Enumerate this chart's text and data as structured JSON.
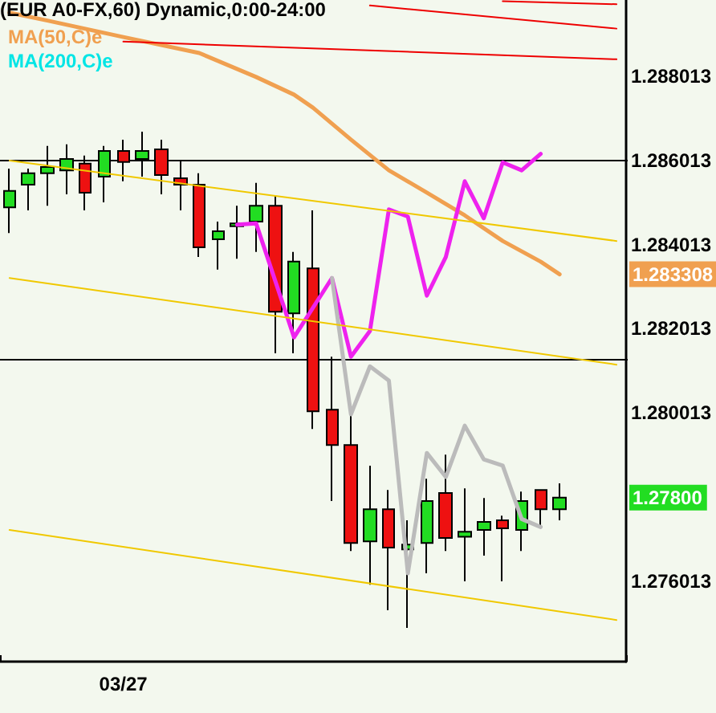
{
  "chart_data": {
    "type": "candlestick",
    "title": "(EUR A0-FX,60) Dynamic,0:00-24:00",
    "categories": [
      null,
      null,
      null,
      null,
      null,
      null,
      "03/27",
      null,
      null,
      null,
      null,
      null,
      null,
      null,
      null,
      null,
      null,
      null,
      null,
      null,
      null,
      null,
      null,
      null,
      null,
      null,
      null,
      null,
      null,
      null,
      null,
      null,
      null
    ],
    "ylim": [
      1.2741,
      1.28983
    ],
    "yticks": [
      1.288013,
      1.286013,
      1.284013,
      1.282013,
      1.280013,
      1.276013
    ],
    "legend": "top left",
    "marker": "none",
    "annotations": [
      "1.283308"
    ],
    "ref_lines": [
      {
        "axis": "y",
        "value": 1.286013,
        "color": "#000000"
      },
      {
        "axis": "y",
        "value": 1.28128,
        "color": "#000000"
      }
    ],
    "series": [
      {
        "type": "candlestick",
        "ohlc": [
          [
            1.2849,
            1.28582,
            1.28429,
            1.28529
          ],
          [
            1.28544,
            1.28582,
            1.28483,
            1.28571
          ],
          [
            1.28571,
            1.28636,
            1.28494,
            1.28586
          ],
          [
            1.28578,
            1.2864,
            1.28521,
            1.28605
          ],
          [
            1.28594,
            1.28613,
            1.28483,
            1.28525
          ],
          [
            1.28563,
            1.28636,
            1.28502,
            1.28624
          ],
          [
            1.28624,
            1.28651,
            1.28552,
            1.28598
          ],
          [
            1.28605,
            1.2867,
            1.28563,
            1.28624
          ],
          [
            1.28628,
            1.28651,
            1.28521,
            1.28567
          ],
          [
            1.28559,
            1.28601,
            1.28483,
            1.28544
          ],
          [
            1.28544,
            1.28571,
            1.28372,
            1.28395
          ],
          [
            1.28414,
            1.28456,
            1.28342,
            1.28433
          ],
          [
            1.28445,
            1.28494,
            1.28368,
            1.28452
          ],
          [
            1.28456,
            1.28548,
            1.28384,
            1.28494
          ],
          [
            1.28494,
            1.28517,
            1.28143,
            1.28242
          ],
          [
            1.28238,
            1.28384,
            1.28143,
            1.28361
          ],
          [
            1.28345,
            1.28483,
            1.27963,
            1.28005
          ],
          [
            1.28009,
            1.28135,
            1.27792,
            1.27925
          ],
          [
            1.27925,
            1.28002,
            1.27673,
            1.27692
          ],
          [
            1.27696,
            1.27876,
            1.27593,
            1.27772
          ],
          [
            1.27772,
            1.27818,
            1.27532,
            1.27681
          ],
          [
            1.27677,
            1.27746,
            1.2749,
            1.27688
          ],
          [
            1.27692,
            1.27845,
            1.2762,
            1.27792
          ],
          [
            1.27811,
            1.27902,
            1.27673,
            1.27704
          ],
          [
            1.27707,
            1.27822,
            1.27601,
            1.27719
          ],
          [
            1.27723,
            1.27799,
            1.27662,
            1.27742
          ],
          [
            1.27746,
            1.27757,
            1.27601,
            1.27727
          ],
          [
            1.27723,
            1.27814,
            1.27673,
            1.27792
          ],
          [
            1.27818,
            1.27818,
            1.2773,
            1.27772
          ],
          [
            1.27772,
            1.27834,
            1.27746,
            1.278
          ],
          null,
          null,
          null
        ],
        "colors": [
          "#22dd22",
          "#22dd22",
          "#22dd22",
          "#22dd22",
          "#ee1111",
          "#22dd22",
          "#ee1111",
          "#22dd22",
          "#ee1111",
          "#ee1111",
          "#ee1111",
          "#22dd22",
          "#22dd22",
          "#22dd22",
          "#ee1111",
          "#22dd22",
          "#ee1111",
          "#ee1111",
          "#ee1111",
          "#22dd22",
          "#ee1111",
          "#22dd22",
          "#22dd22",
          "#ee1111",
          "#22dd22",
          "#22dd22",
          "#ee1111",
          "#22dd22",
          "#ee1111",
          "#22dd22",
          null,
          null,
          null
        ],
        "value_labels": [
          null,
          null,
          null,
          null,
          null,
          null,
          null,
          null,
          null,
          null,
          null,
          null,
          null,
          null,
          null,
          null,
          null,
          null,
          null,
          null,
          null,
          null,
          null,
          null,
          null,
          null,
          null,
          null,
          null,
          "1.27800",
          null,
          null,
          null
        ]
      },
      {
        "type": "line",
        "name": "MA(50,C)e",
        "color": "#f0a050",
        "values": [
          1.28953,
          null,
          1.28934,
          null,
          null,
          null,
          1.28895,
          null,
          null,
          null,
          1.28857,
          null,
          null,
          1.288,
          null,
          1.28758,
          1.28727,
          null,
          1.28651,
          null,
          1.28578,
          null,
          1.28525,
          null,
          1.28471,
          null,
          1.2841,
          null,
          1.28361,
          1.28331,
          null,
          null,
          null
        ]
      },
      {
        "type": "line",
        "name": "MA(200,C)e",
        "color": "#00e5e5",
        "values": [
          null,
          null,
          null,
          null,
          null,
          null,
          null,
          null,
          null,
          null,
          null,
          null,
          null,
          null,
          null,
          null,
          null,
          null,
          null,
          null,
          null,
          null,
          null,
          null,
          null,
          null,
          null,
          null,
          null,
          null,
          null,
          null,
          null
        ]
      },
      {
        "type": "line",
        "color": "#ee22ee",
        "values": [
          null,
          null,
          null,
          null,
          null,
          null,
          null,
          null,
          null,
          null,
          null,
          null,
          1.28449,
          1.28452,
          null,
          1.28181,
          null,
          1.28322,
          1.28135,
          1.28196,
          1.28485,
          1.28468,
          1.2828,
          1.28372,
          1.28552,
          1.28464,
          1.28597,
          1.28578,
          1.28617,
          null,
          null,
          null,
          null
        ]
      },
      {
        "type": "line",
        "color": "#bbbbbb",
        "values": [
          null,
          null,
          null,
          null,
          null,
          null,
          null,
          null,
          null,
          null,
          null,
          null,
          null,
          null,
          null,
          null,
          null,
          1.28322,
          1.27998,
          1.28112,
          1.28078,
          1.2762,
          1.27906,
          1.27849,
          1.27971,
          1.27891,
          1.27876,
          1.27749,
          1.2773,
          null,
          null,
          null,
          null
        ]
      },
      {
        "type": "line",
        "color": "#f0c800",
        "values": [
          1.28601,
          null,
          null,
          null,
          null,
          null,
          null,
          null,
          null,
          null,
          null,
          null,
          null,
          null,
          null,
          null,
          null,
          null,
          null,
          null,
          null,
          null,
          null,
          null,
          null,
          null,
          null,
          null,
          null,
          null,
          null,
          null,
          1.2841
        ]
      },
      {
        "type": "line",
        "color": "#f0c800",
        "values": [
          1.28322,
          null,
          null,
          null,
          null,
          null,
          null,
          null,
          null,
          null,
          null,
          null,
          null,
          null,
          null,
          null,
          null,
          null,
          null,
          null,
          null,
          null,
          null,
          null,
          null,
          null,
          null,
          null,
          null,
          null,
          null,
          null,
          1.28116
        ]
      },
      {
        "type": "line",
        "color": "#f0c800",
        "values": [
          1.27723,
          null,
          null,
          null,
          null,
          null,
          null,
          null,
          null,
          null,
          null,
          null,
          null,
          null,
          null,
          null,
          null,
          null,
          null,
          null,
          null,
          null,
          null,
          null,
          null,
          null,
          null,
          null,
          null,
          null,
          null,
          null,
          1.27509
        ]
      },
      {
        "type": "line",
        "color": "#ee0000",
        "values": [
          null,
          null,
          null,
          null,
          null,
          null,
          1.28884,
          null,
          null,
          null,
          null,
          null,
          null,
          null,
          null,
          null,
          null,
          null,
          null,
          null,
          null,
          null,
          null,
          null,
          null,
          null,
          null,
          null,
          null,
          null,
          null,
          null,
          1.28842
        ]
      },
      {
        "type": "line",
        "color": "#ee0000",
        "values": [
          null,
          null,
          null,
          null,
          null,
          null,
          null,
          null,
          null,
          null,
          null,
          null,
          null,
          null,
          null,
          null,
          null,
          null,
          null,
          1.2897,
          null,
          null,
          null,
          null,
          null,
          null,
          null,
          null,
          null,
          null,
          null,
          null,
          1.28915
        ]
      },
      {
        "type": "line",
        "color": "#ee0000",
        "values": [
          null,
          null,
          null,
          null,
          null,
          null,
          null,
          null,
          null,
          null,
          null,
          null,
          null,
          null,
          null,
          null,
          null,
          null,
          null,
          null,
          null,
          null,
          null,
          null,
          null,
          null,
          1.2898,
          null,
          null,
          null,
          null,
          null,
          1.28973
        ]
      }
    ]
  }
}
